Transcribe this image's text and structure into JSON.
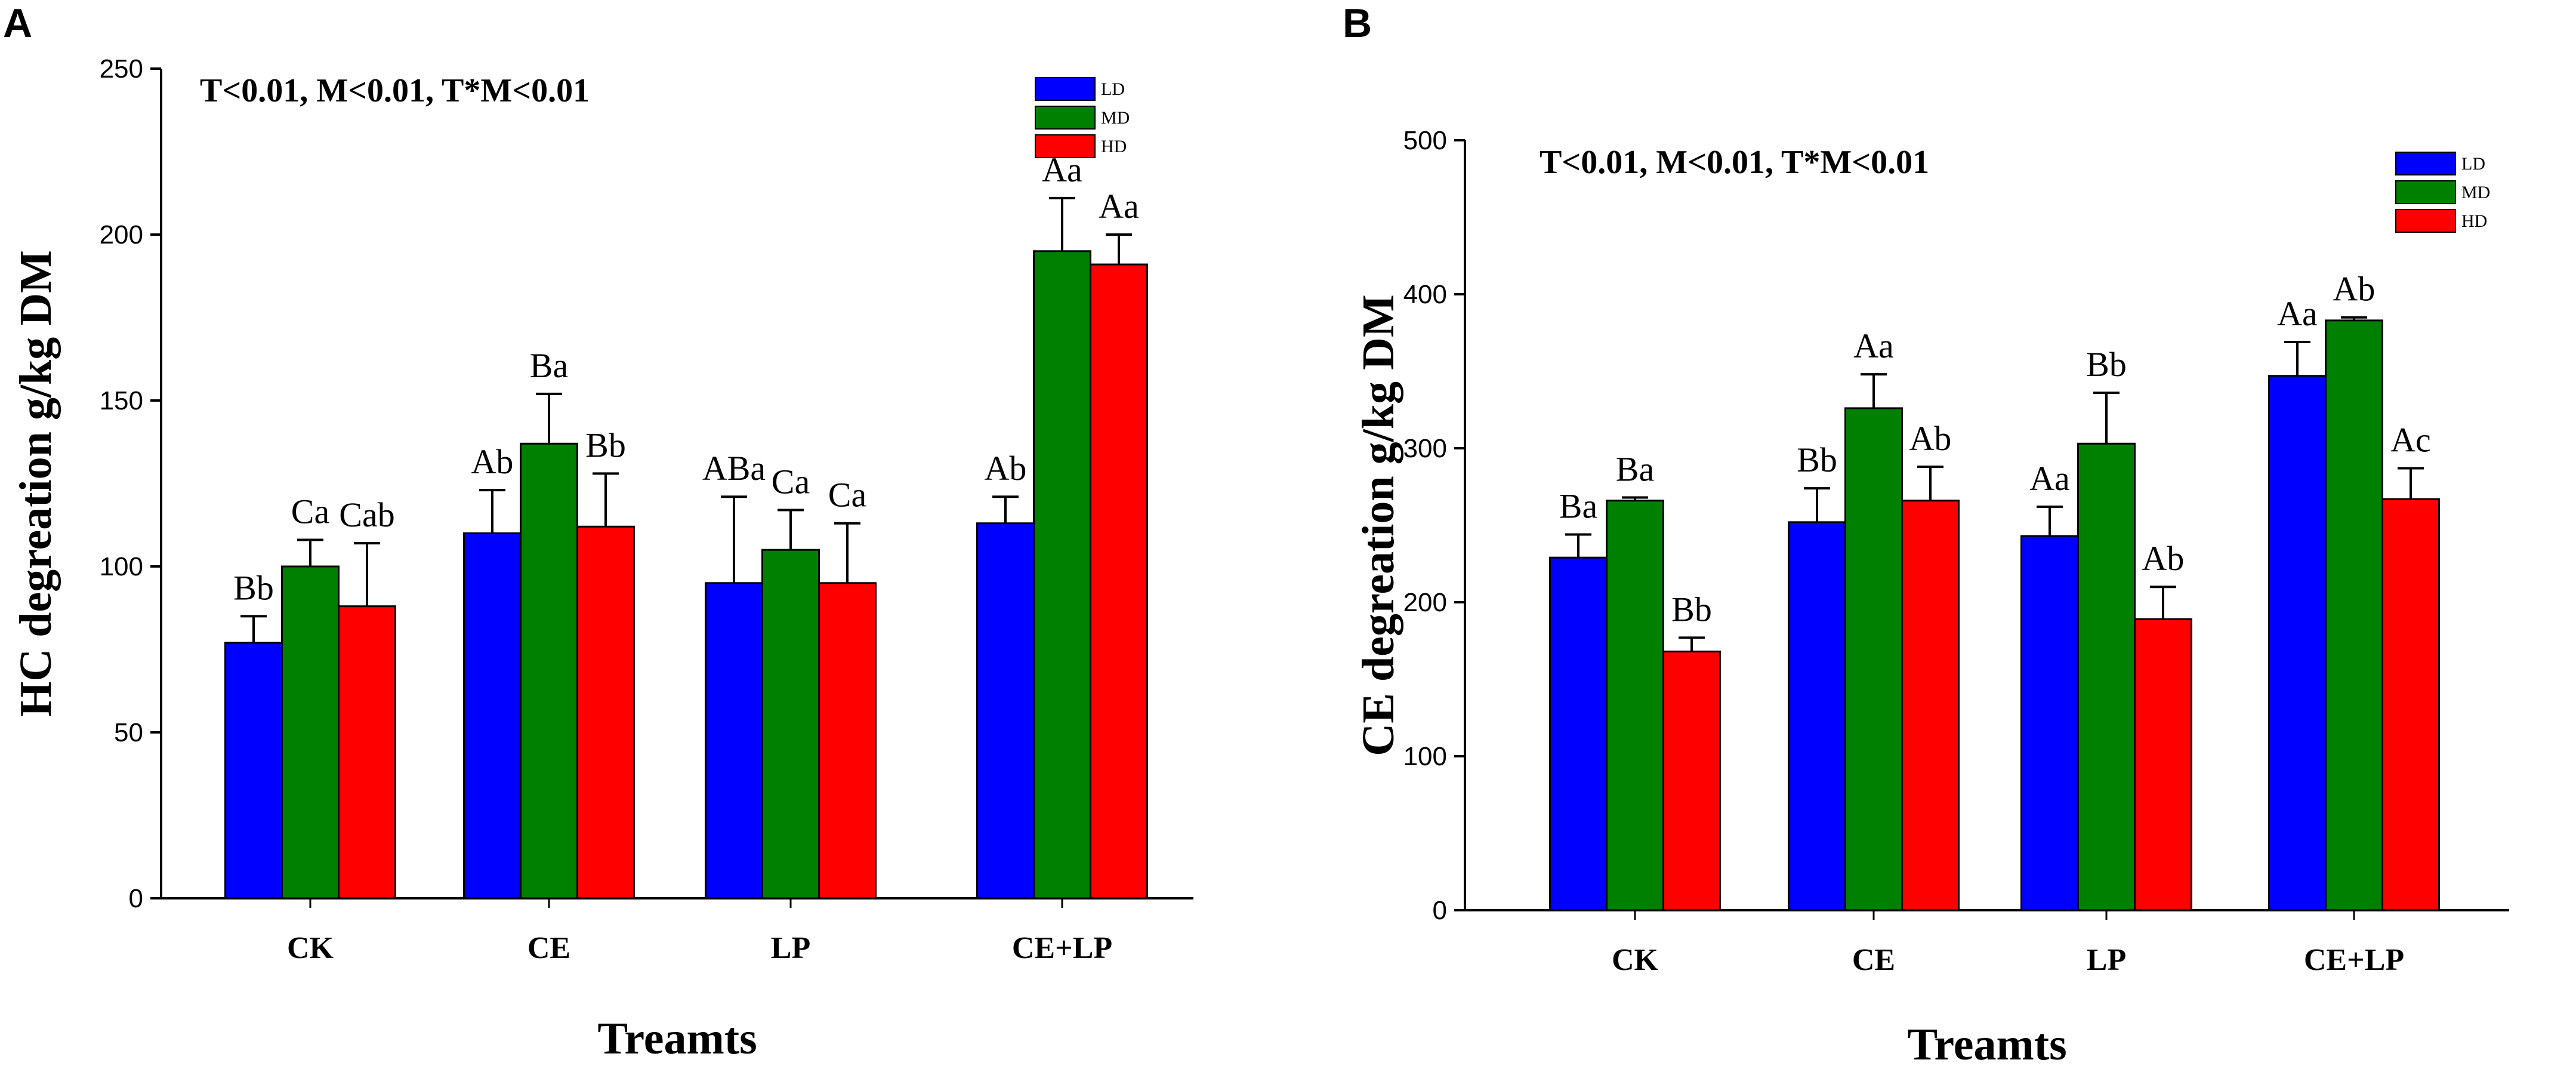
{
  "chart_data": [
    {
      "type": "bar",
      "panel": "A",
      "annotation": "T<0.01,  M<0.01,  T*M<0.01",
      "categories": [
        "CK",
        "CE",
        "LP",
        "CE+LP"
      ],
      "series": [
        {
          "name": "LD",
          "color": "#0000ff",
          "values": [
            77,
            110,
            95,
            113
          ],
          "errors": [
            8,
            13,
            26,
            8
          ],
          "labels": [
            "Bb",
            "Ab",
            "ABa",
            "Ab"
          ]
        },
        {
          "name": "MD",
          "color": "#008000",
          "values": [
            100,
            137,
            105,
            195
          ],
          "errors": [
            8,
            15,
            12,
            16
          ],
          "labels": [
            "Ca",
            "Ba",
            "Ca",
            "Aa"
          ]
        },
        {
          "name": "HD",
          "color": "#ff0000",
          "values": [
            88,
            112,
            95,
            191
          ],
          "errors": [
            19,
            16,
            18,
            9
          ],
          "labels": [
            "Cab",
            "Bb",
            "Ca",
            "Aa"
          ]
        }
      ],
      "ylabel": "HC degreation  g/kg DM",
      "xlabel": "Treamts",
      "ylim": [
        0,
        250
      ],
      "yticks": [
        0,
        50,
        100,
        150,
        200,
        250
      ],
      "legend_position": "top-right"
    },
    {
      "type": "bar",
      "panel": "B",
      "annotation": "T<0.01,  M<0.01,  T*M<0.01",
      "categories": [
        "CK",
        "CE",
        "LP",
        "CE+LP"
      ],
      "series": [
        {
          "name": "LD",
          "color": "#0000ff",
          "values": [
            229,
            252,
            243,
            347
          ],
          "errors": [
            15,
            22,
            19,
            22
          ],
          "labels": [
            "Ba",
            "Bb",
            "Aa",
            "Aa"
          ]
        },
        {
          "name": "MD",
          "color": "#008000",
          "values": [
            266,
            326,
            303,
            383
          ],
          "errors": [
            2,
            22,
            33,
            2
          ],
          "labels": [
            "Ba",
            "Aa",
            "Bb",
            "Ab"
          ]
        },
        {
          "name": "HD",
          "color": "#ff0000",
          "values": [
            168,
            266,
            189,
            267
          ],
          "errors": [
            9,
            22,
            21,
            20
          ],
          "labels": [
            "Bb",
            "Ab",
            "Ab",
            "Ac"
          ]
        }
      ],
      "ylabel": "CE degreation  g/kg DM",
      "xlabel": "Treamts",
      "ylim": [
        0,
        500
      ],
      "yticks": [
        0,
        100,
        200,
        300,
        400,
        500
      ],
      "legend_position": "top-right"
    }
  ]
}
